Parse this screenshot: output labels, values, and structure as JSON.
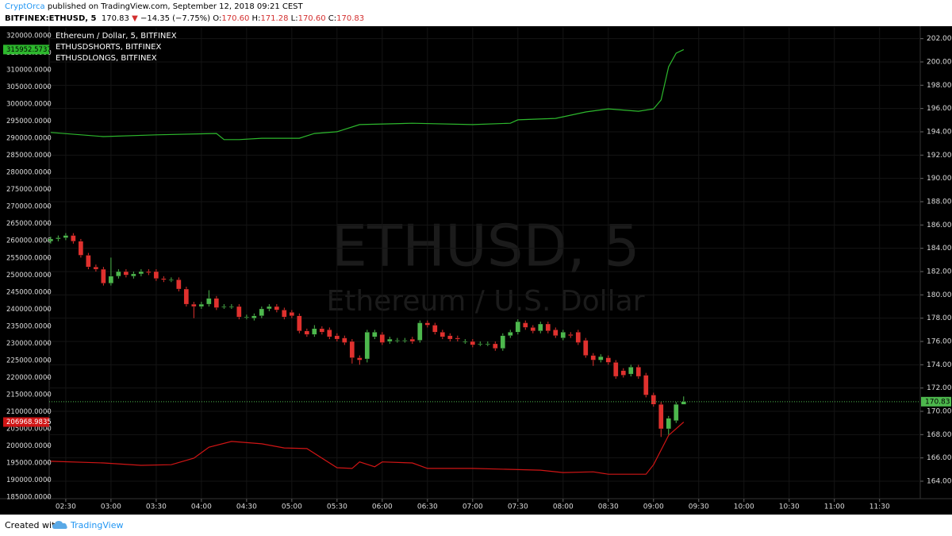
{
  "header": {
    "author": "CryptOrca",
    "published": "published on TradingView.com, September 12, 2018 09:21 CEST",
    "symbol": "BITFINEX:ETHUSD, 5",
    "price": "170.83",
    "direction": "▼",
    "change": "−14.35 (−7.75%)",
    "ohlc": [
      {
        "key": "O:",
        "value": "170.60"
      },
      {
        "key": "H:",
        "value": "171.28"
      },
      {
        "key": "L:",
        "value": "170.60"
      },
      {
        "key": "C:",
        "value": "170.83"
      }
    ]
  },
  "footer": {
    "created_with": "Created with",
    "brand": "TradingView"
  },
  "chart_data": {
    "type": "candlestick",
    "name": "Ethereum / Dollar, 5, BITFINEX",
    "watermark": {
      "symbol": "ETHUSD, 5",
      "description": "Ethereum / U.S. Dollar"
    },
    "up_color": "#4db84d",
    "down_color": "#e0312e",
    "background": "#000000",
    "grid": true,
    "x": [
      140,
      145,
      150,
      155,
      160,
      165,
      170,
      175,
      180,
      185,
      190,
      195,
      200,
      205,
      210,
      215,
      220,
      225,
      230,
      235,
      240,
      245,
      250,
      255,
      260,
      265,
      270,
      275,
      280,
      285,
      290,
      295,
      300,
      305,
      310,
      315,
      320,
      325,
      330,
      335,
      340,
      345,
      350,
      355,
      360,
      365,
      370,
      375,
      380,
      385,
      390,
      395,
      400,
      405,
      410,
      415,
      420,
      425,
      430,
      435,
      440,
      445,
      450,
      455,
      460,
      465,
      470,
      475,
      480,
      485,
      490,
      495,
      500,
      505,
      510,
      515,
      520,
      525,
      530,
      535,
      540,
      545,
      550,
      555,
      560
    ],
    "open": [
      184.6,
      184.8,
      184.9,
      185.1,
      184.6,
      183.4,
      182.4,
      182.2,
      181.0,
      181.6,
      182.0,
      181.6,
      181.8,
      182.0,
      182.0,
      181.4,
      181.3,
      181.3,
      180.5,
      179.2,
      179.0,
      179.2,
      179.7,
      179.0,
      179.0,
      179.0,
      178.1,
      178.0,
      178.2,
      178.8,
      179.0,
      178.7,
      178.5,
      178.2,
      176.9,
      176.6,
      177.1,
      177.0,
      176.5,
      176.3,
      176.0,
      174.6,
      174.5,
      176.4,
      176.6,
      176.0,
      176.1,
      176.1,
      176.2,
      176.1,
      177.6,
      177.4,
      176.8,
      176.5,
      176.3,
      176.0,
      176.0,
      175.8,
      175.8,
      175.8,
      175.4,
      176.5,
      176.8,
      177.6,
      177.2,
      176.9,
      177.5,
      177.0,
      176.3,
      176.6,
      176.8,
      176.1,
      174.8,
      174.4,
      174.6,
      174.2,
      173.5,
      173.2,
      173.8,
      173.1,
      171.4,
      170.6,
      168.5,
      169.2,
      170.6
    ],
    "high": [
      185.0,
      185.1,
      185.3,
      185.3,
      184.8,
      183.6,
      182.6,
      182.4,
      183.2,
      182.2,
      182.2,
      182.0,
      182.2,
      182.2,
      182.2,
      181.6,
      181.5,
      181.5,
      180.7,
      179.4,
      179.4,
      180.4,
      179.9,
      179.2,
      179.2,
      179.2,
      178.3,
      178.4,
      179.0,
      179.2,
      179.2,
      178.9,
      178.7,
      178.4,
      177.1,
      177.4,
      177.3,
      177.2,
      176.7,
      176.5,
      176.2,
      174.8,
      177.0,
      177.0,
      176.8,
      176.4,
      176.3,
      176.3,
      176.4,
      177.8,
      177.8,
      177.6,
      177.0,
      176.7,
      176.5,
      176.2,
      176.2,
      176.0,
      176.0,
      176.0,
      176.7,
      177.0,
      177.9,
      177.8,
      177.4,
      177.7,
      177.7,
      177.2,
      177.0,
      176.8,
      177.0,
      176.3,
      175.0,
      174.9,
      174.8,
      174.4,
      173.7,
      174.0,
      174.0,
      173.3,
      171.6,
      170.8,
      169.6,
      170.8,
      171.28
    ],
    "low": [
      184.4,
      184.6,
      184.7,
      184.4,
      183.2,
      182.2,
      182.0,
      180.8,
      180.8,
      181.4,
      181.5,
      181.4,
      181.6,
      181.7,
      181.2,
      181.1,
      181.1,
      180.3,
      179.0,
      178.0,
      178.8,
      179.0,
      178.7,
      178.8,
      178.8,
      177.9,
      177.9,
      177.8,
      178.0,
      178.6,
      178.5,
      177.9,
      178.0,
      176.7,
      176.4,
      176.4,
      176.6,
      176.2,
      176.0,
      175.7,
      174.1,
      174.0,
      174.2,
      176.2,
      175.7,
      175.8,
      175.9,
      175.9,
      175.8,
      175.9,
      177.2,
      176.6,
      176.2,
      176.0,
      176.0,
      175.8,
      175.5,
      175.6,
      175.6,
      175.2,
      175.2,
      176.3,
      176.6,
      177.0,
      176.7,
      176.7,
      176.7,
      176.3,
      176.1,
      176.3,
      175.7,
      174.6,
      173.9,
      174.2,
      174.0,
      172.8,
      172.9,
      173.0,
      172.8,
      171.2,
      170.4,
      167.8,
      168.0,
      169.0,
      170.6
    ],
    "close": [
      184.8,
      184.9,
      185.1,
      184.6,
      183.4,
      182.4,
      182.2,
      181.0,
      181.6,
      182.0,
      181.7,
      181.8,
      182.0,
      181.9,
      181.4,
      181.3,
      181.3,
      180.5,
      179.2,
      179.0,
      179.2,
      179.7,
      178.9,
      179.0,
      179.0,
      178.1,
      178.1,
      178.2,
      178.8,
      179.0,
      178.7,
      178.1,
      178.2,
      176.9,
      176.6,
      177.1,
      176.8,
      176.4,
      176.2,
      175.9,
      174.6,
      174.4,
      176.8,
      176.8,
      175.9,
      176.2,
      176.1,
      176.1,
      176.0,
      177.6,
      177.4,
      176.8,
      176.4,
      176.2,
      176.2,
      176.0,
      175.7,
      175.8,
      175.8,
      175.4,
      176.5,
      176.8,
      177.7,
      177.2,
      176.9,
      177.5,
      176.9,
      176.5,
      176.8,
      176.5,
      175.9,
      174.8,
      174.4,
      174.7,
      174.2,
      173.0,
      173.1,
      173.8,
      173.0,
      171.4,
      170.6,
      168.5,
      169.4,
      170.6,
      170.83
    ],
    "xlim": [
      139,
      717
    ],
    "xticks": [
      {
        "value": 150,
        "label": "02:30"
      },
      {
        "value": 180,
        "label": "03:00"
      },
      {
        "value": 210,
        "label": "03:30"
      },
      {
        "value": 240,
        "label": "04:00"
      },
      {
        "value": 270,
        "label": "04:30"
      },
      {
        "value": 300,
        "label": "05:00"
      },
      {
        "value": 330,
        "label": "05:30"
      },
      {
        "value": 360,
        "label": "06:00"
      },
      {
        "value": 390,
        "label": "06:30"
      },
      {
        "value": 420,
        "label": "07:00"
      },
      {
        "value": 450,
        "label": "07:30"
      },
      {
        "value": 480,
        "label": "08:00"
      },
      {
        "value": 510,
        "label": "08:30"
      },
      {
        "value": 540,
        "label": "09:00"
      },
      {
        "value": 570,
        "label": "09:30"
      },
      {
        "value": 600,
        "label": "10:00"
      },
      {
        "value": 630,
        "label": "10:30"
      },
      {
        "value": 660,
        "label": "11:00"
      },
      {
        "value": 690,
        "label": "11:30"
      }
    ],
    "ylim": [
      162.5,
      203.0
    ],
    "yticks": [
      {
        "value": 164,
        "label": "164.00"
      },
      {
        "value": 166,
        "label": "166.00"
      },
      {
        "value": 168,
        "label": "168.00"
      },
      {
        "value": 170,
        "label": "170.00"
      },
      {
        "value": 172,
        "label": "172.00"
      },
      {
        "value": 174,
        "label": "174.00"
      },
      {
        "value": 176,
        "label": "176.00"
      },
      {
        "value": 178,
        "label": "178.00"
      },
      {
        "value": 180,
        "label": "180.00"
      },
      {
        "value": 182,
        "label": "182.00"
      },
      {
        "value": 184,
        "label": "184.00"
      },
      {
        "value": 186,
        "label": "186.00"
      },
      {
        "value": 188,
        "label": "188.00"
      },
      {
        "value": 190,
        "label": "190.00"
      },
      {
        "value": 192,
        "label": "192.00"
      },
      {
        "value": 194,
        "label": "194.00"
      },
      {
        "value": 196,
        "label": "196.00"
      },
      {
        "value": 198,
        "label": "198.00"
      },
      {
        "value": 200,
        "label": "200.00"
      },
      {
        "value": 202,
        "label": "202.00"
      }
    ],
    "y2lim": [
      184550,
      322550
    ],
    "y2ticks": [
      {
        "value": 185000,
        "label": "185000.0000"
      },
      {
        "value": 190000,
        "label": "190000.0000"
      },
      {
        "value": 195000,
        "label": "195000.0000"
      },
      {
        "value": 200000,
        "label": "200000.0000"
      },
      {
        "value": 205000,
        "label": "205000.0000"
      },
      {
        "value": 210000,
        "label": "210000.0000"
      },
      {
        "value": 215000,
        "label": "215000.0000"
      },
      {
        "value": 220000,
        "label": "220000.0000"
      },
      {
        "value": 225000,
        "label": "225000.0000"
      },
      {
        "value": 230000,
        "label": "230000.0000"
      },
      {
        "value": 235000,
        "label": "235000.0000"
      },
      {
        "value": 240000,
        "label": "240000.0000"
      },
      {
        "value": 245000,
        "label": "245000.0000"
      },
      {
        "value": 250000,
        "label": "250000.0000"
      },
      {
        "value": 255000,
        "label": "255000.0000"
      },
      {
        "value": 260000,
        "label": "260000.0000"
      },
      {
        "value": 265000,
        "label": "265000.0000"
      },
      {
        "value": 270000,
        "label": "270000.0000"
      },
      {
        "value": 275000,
        "label": "275000.0000"
      },
      {
        "value": 280000,
        "label": "280000.0000"
      },
      {
        "value": 285000,
        "label": "285000.0000"
      },
      {
        "value": 290000,
        "label": "290000.0000"
      },
      {
        "value": 295000,
        "label": "295000.0000"
      },
      {
        "value": 300000,
        "label": "300000.0000"
      },
      {
        "value": 305000,
        "label": "305000.0000"
      },
      {
        "value": 310000,
        "label": "310000.0000"
      },
      {
        "value": 315000,
        "label": "315000.0000"
      },
      {
        "value": 320000,
        "label": "320000.0000"
      }
    ],
    "series": [
      {
        "name": "ETHUSDSHORTS, BITFINEX",
        "color": "#2db82d",
        "axis": "y2",
        "x": [
          140,
          175,
          210,
          250,
          255,
          265,
          280,
          305,
          315,
          330,
          345,
          380,
          420,
          445,
          450,
          475,
          495,
          510,
          530,
          540,
          545,
          550,
          555,
          560
        ],
        "values": [
          291700,
          290500,
          291000,
          291400,
          289600,
          289600,
          290000,
          290000,
          291400,
          291900,
          294000,
          294400,
          294000,
          294400,
          295400,
          295800,
          297700,
          298600,
          297900,
          298600,
          301200,
          310900,
          314900,
          315952.5737
        ]
      },
      {
        "name": "ETHUSDLONGS, BITFINEX",
        "color": "#d01515",
        "axis": "y2",
        "x": [
          140,
          175,
          200,
          220,
          235,
          245,
          260,
          280,
          295,
          310,
          330,
          340,
          345,
          355,
          360,
          380,
          390,
          420,
          465,
          480,
          500,
          510,
          535,
          540,
          550,
          560
        ],
        "values": [
          195500,
          195000,
          194300,
          194500,
          196400,
          199600,
          201300,
          200600,
          199400,
          199200,
          193600,
          193400,
          195300,
          193900,
          195300,
          195000,
          193400,
          193400,
          192900,
          192200,
          192400,
          191700,
          191700,
          194500,
          203100,
          206968.9835
        ]
      }
    ]
  }
}
